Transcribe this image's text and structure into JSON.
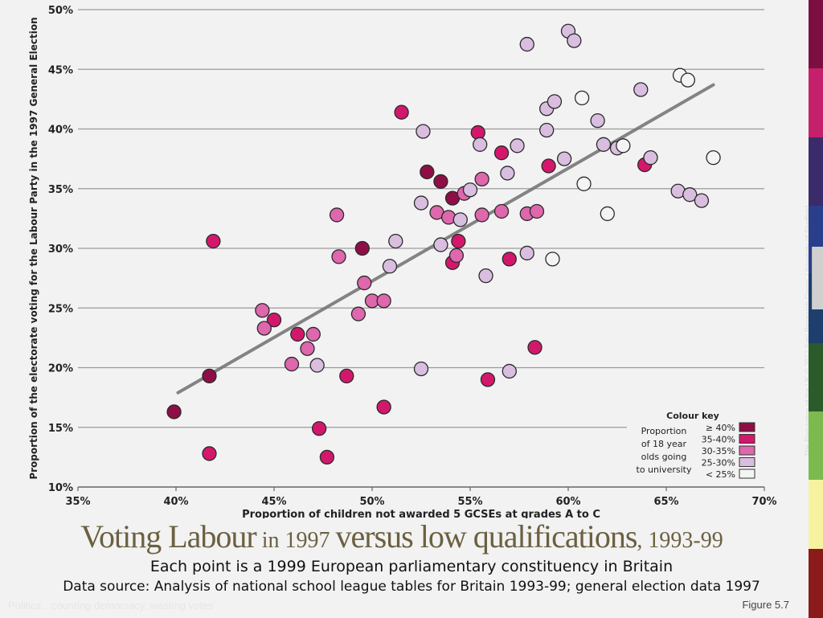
{
  "slide": {
    "title_part1": "Voting Labour",
    "title_part2": " in 1997 ",
    "title_part3": "versus low qualifications",
    "title_part4": ", 1993-99",
    "subtitle": "Each point is a 1999 European parliamentary constituency in Britain",
    "source": "Data source: Analysis of national school league tables for Britain 1993-99; general election data 1997",
    "footer_left": "Politics…counting democracy, wasting votes",
    "figure_label": "Figure 5.7",
    "side_credit": "The Population of the UK  © 2012  Sasi Research Group, University of Sheffield",
    "stripe_colors": [
      "#7b1040",
      "#c4206c",
      "#3b2b6b",
      "#2a3f8c",
      "#1e3e6e",
      "#2b5a2b",
      "#7cb94e",
      "#f6f2a0",
      "#8b1a1a"
    ]
  },
  "chart_data": {
    "type": "scatter",
    "xlabel": "Proportion of children not awarded 5 GCSEs at grades A to C",
    "ylabel": "Proportion of the electorate voting for the Labour Party in the 1997 General Election",
    "xlim": [
      35,
      70
    ],
    "ylim": [
      10,
      50
    ],
    "x_ticks": [
      "35%",
      "40%",
      "45%",
      "50%",
      "55%",
      "60%",
      "65%",
      "70%"
    ],
    "y_ticks": [
      "10%",
      "15%",
      "20%",
      "25%",
      "30%",
      "35%",
      "40%",
      "45%",
      "50%"
    ],
    "grid": "horizontal",
    "trendline": {
      "x": [
        40.1,
        67.4
      ],
      "y": [
        17.9,
        43.7
      ],
      "color": "#777777"
    },
    "legend": {
      "title": "Colour key",
      "description": [
        "Proportion",
        "of 18 year",
        "olds going",
        "to university"
      ],
      "placement": "bottom-right",
      "entries": [
        {
          "label": "≥ 40%",
          "color": "#8e0f45"
        },
        {
          "label": "35-40%",
          "color": "#d3186c"
        },
        {
          "label": "30-35%",
          "color": "#de67ad"
        },
        {
          "label": "25-30%",
          "color": "#d9bee0"
        },
        {
          "label": "< 25%",
          "color": "#f4f4f4"
        }
      ]
    },
    "series": [
      {
        "name": "≥ 40%",
        "color": "#8e0f45",
        "points": [
          [
            39.9,
            16.3
          ],
          [
            41.7,
            19.3
          ],
          [
            49.5,
            30.0
          ],
          [
            52.8,
            36.4
          ],
          [
            53.5,
            35.6
          ],
          [
            54.1,
            34.2
          ]
        ]
      },
      {
        "name": "35-40%",
        "color": "#d3186c",
        "points": [
          [
            41.7,
            12.8
          ],
          [
            41.9,
            30.6
          ],
          [
            45.0,
            24.0
          ],
          [
            46.2,
            22.8
          ],
          [
            47.3,
            14.9
          ],
          [
            47.7,
            12.5
          ],
          [
            48.7,
            19.3
          ],
          [
            50.6,
            16.7
          ],
          [
            51.5,
            41.4
          ],
          [
            54.1,
            28.8
          ],
          [
            54.4,
            30.6
          ],
          [
            55.4,
            39.7
          ],
          [
            56.6,
            38.0
          ],
          [
            57.0,
            29.1
          ],
          [
            55.9,
            19.0
          ],
          [
            58.3,
            21.7
          ],
          [
            59.0,
            36.9
          ],
          [
            63.9,
            37.0
          ]
        ]
      },
      {
        "name": "30-35%",
        "color": "#de67ad",
        "points": [
          [
            44.4,
            24.8
          ],
          [
            44.5,
            23.3
          ],
          [
            45.9,
            20.3
          ],
          [
            46.7,
            21.6
          ],
          [
            47.0,
            22.8
          ],
          [
            48.2,
            32.8
          ],
          [
            48.3,
            29.3
          ],
          [
            49.3,
            24.5
          ],
          [
            49.6,
            27.1
          ],
          [
            50.0,
            25.6
          ],
          [
            50.6,
            25.6
          ],
          [
            53.3,
            33.0
          ],
          [
            53.9,
            32.6
          ],
          [
            54.3,
            29.4
          ],
          [
            54.7,
            34.6
          ],
          [
            55.6,
            35.8
          ],
          [
            55.6,
            32.8
          ],
          [
            56.6,
            33.1
          ],
          [
            57.9,
            32.9
          ],
          [
            58.4,
            33.1
          ]
        ]
      },
      {
        "name": "25-30%",
        "color": "#d9bee0",
        "points": [
          [
            47.2,
            20.2
          ],
          [
            50.9,
            28.5
          ],
          [
            51.2,
            30.6
          ],
          [
            52.5,
            33.8
          ],
          [
            52.6,
            39.8
          ],
          [
            52.5,
            19.9
          ],
          [
            53.5,
            30.3
          ],
          [
            54.5,
            32.4
          ],
          [
            55.0,
            34.9
          ],
          [
            55.5,
            38.7
          ],
          [
            55.8,
            27.7
          ],
          [
            56.9,
            36.3
          ],
          [
            57.4,
            38.6
          ],
          [
            57.0,
            19.7
          ],
          [
            57.9,
            29.6
          ],
          [
            57.9,
            47.1
          ],
          [
            58.9,
            39.9
          ],
          [
            58.9,
            41.7
          ],
          [
            59.3,
            42.3
          ],
          [
            59.8,
            37.5
          ],
          [
            60.0,
            48.2
          ],
          [
            60.3,
            47.4
          ],
          [
            61.5,
            40.7
          ],
          [
            61.8,
            38.7
          ],
          [
            62.5,
            38.4
          ],
          [
            63.7,
            43.3
          ],
          [
            64.2,
            37.6
          ],
          [
            65.6,
            34.8
          ],
          [
            66.2,
            34.5
          ],
          [
            66.8,
            34.0
          ]
        ]
      },
      {
        "name": "< 25%",
        "color": "#f4f4f4",
        "points": [
          [
            59.2,
            29.1
          ],
          [
            60.7,
            42.6
          ],
          [
            60.8,
            35.4
          ],
          [
            62.0,
            32.9
          ],
          [
            62.8,
            38.6
          ],
          [
            65.7,
            44.5
          ],
          [
            66.1,
            44.1
          ],
          [
            67.4,
            37.6
          ]
        ]
      }
    ]
  }
}
